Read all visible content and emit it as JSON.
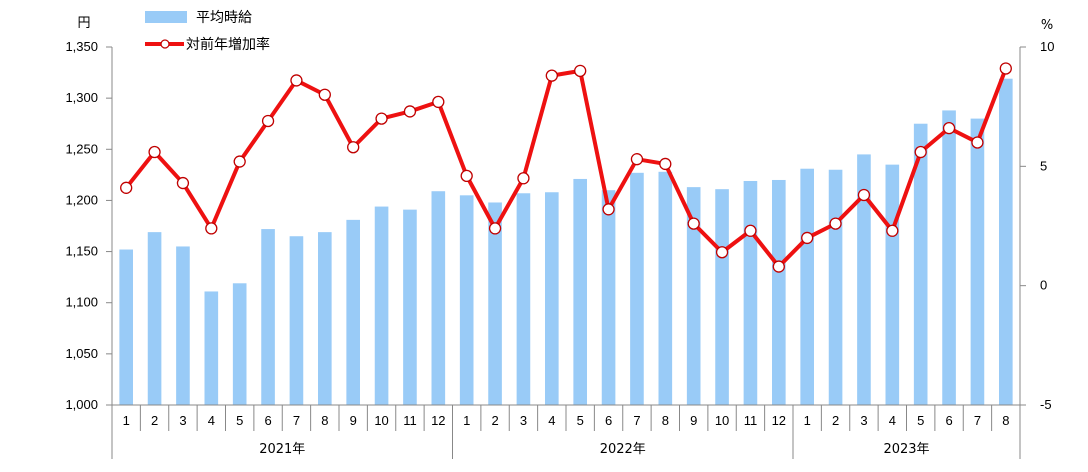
{
  "chart_data": {
    "type": "bar+line",
    "left_unit": "円",
    "right_unit": "%",
    "categories": [
      "1",
      "2",
      "3",
      "4",
      "5",
      "6",
      "7",
      "8",
      "9",
      "10",
      "11",
      "12",
      "1",
      "2",
      "3",
      "4",
      "5",
      "6",
      "7",
      "8",
      "9",
      "10",
      "11",
      "12",
      "1",
      "2",
      "3",
      "4",
      "5",
      "6",
      "7",
      "8"
    ],
    "groups": [
      {
        "label": "2021年",
        "count": 12
      },
      {
        "label": "2022年",
        "count": 12
      },
      {
        "label": "2023年",
        "count": 8
      }
    ],
    "y_left": {
      "min": 1000,
      "max": 1350,
      "step": 50,
      "tick_labels": [
        "1,000",
        "1,050",
        "1,100",
        "1,150",
        "1,200",
        "1,250",
        "1,300",
        "1,350"
      ]
    },
    "y_right": {
      "min": -5,
      "max": 10,
      "ticks": [
        -5,
        0,
        5,
        10
      ],
      "tick_labels": [
        "-5",
        "0",
        "5",
        "10"
      ]
    },
    "series": [
      {
        "name": "平均時給",
        "kind": "bar",
        "axis": "left",
        "color": "#99cbf7",
        "values": [
          1152,
          1169,
          1155,
          1111,
          1119,
          1172,
          1165,
          1169,
          1181,
          1194,
          1191,
          1209,
          1205,
          1198,
          1207,
          1208,
          1221,
          1210,
          1227,
          1228,
          1213,
          1211,
          1219,
          1220,
          1231,
          1230,
          1245,
          1235,
          1275,
          1288,
          1280,
          1319
        ]
      },
      {
        "name": "対前年増加率",
        "kind": "line",
        "axis": "right",
        "color": "#ee1111",
        "values": [
          4.1,
          5.6,
          4.3,
          2.4,
          5.2,
          6.9,
          8.6,
          8.0,
          5.8,
          7.0,
          7.3,
          7.7,
          4.6,
          2.4,
          4.5,
          8.8,
          9.0,
          3.2,
          5.3,
          5.1,
          2.6,
          1.4,
          2.3,
          0.8,
          2.0,
          2.6,
          3.8,
          2.3,
          5.6,
          6.6,
          6.0,
          9.1
        ]
      }
    ]
  }
}
